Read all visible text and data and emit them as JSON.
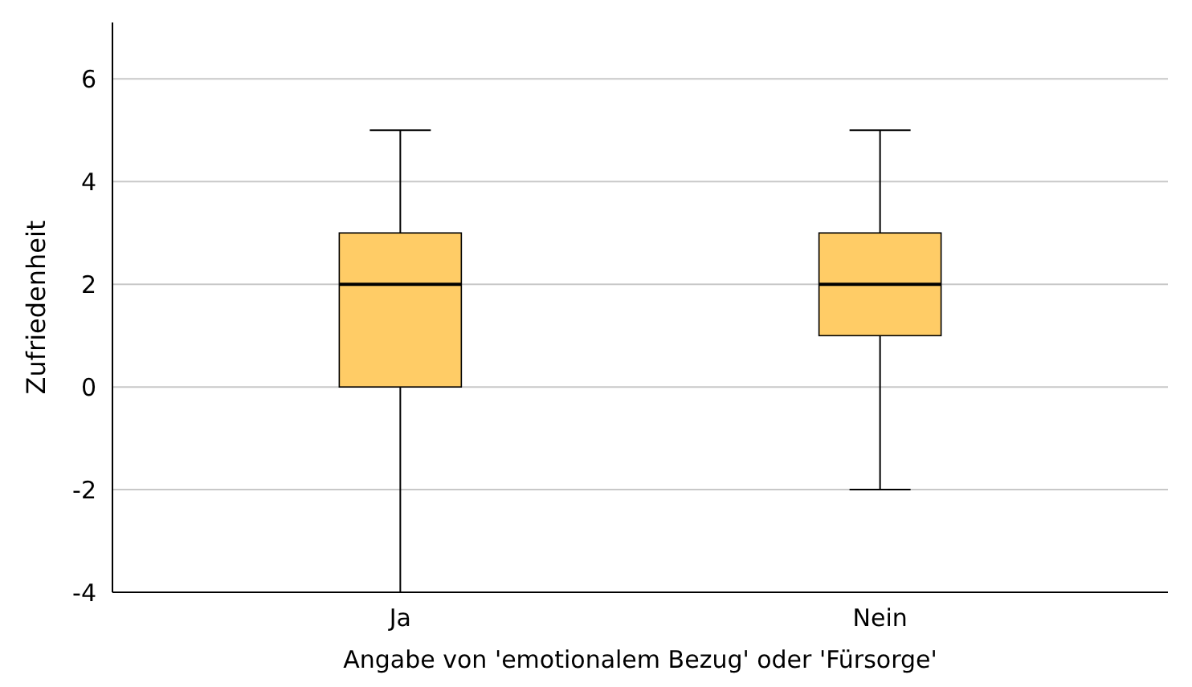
{
  "chart_data": {
    "type": "box",
    "xlabel": "Angabe von 'emotionalem Bezug' oder 'Fürsorge'",
    "ylabel": "Zufriedenheit",
    "categories": [
      "Ja",
      "Nein"
    ],
    "boxes": [
      {
        "low": -4,
        "q1": 0,
        "median": 2,
        "q3": 3,
        "high": 5
      },
      {
        "low": -2,
        "q1": 1,
        "median": 2,
        "q3": 3,
        "high": 5
      }
    ],
    "color": "#ffcc66",
    "ylim": [
      -4,
      7.1
    ],
    "yticks": [
      -4,
      -2,
      0,
      2,
      4,
      6
    ],
    "grid": "y"
  }
}
